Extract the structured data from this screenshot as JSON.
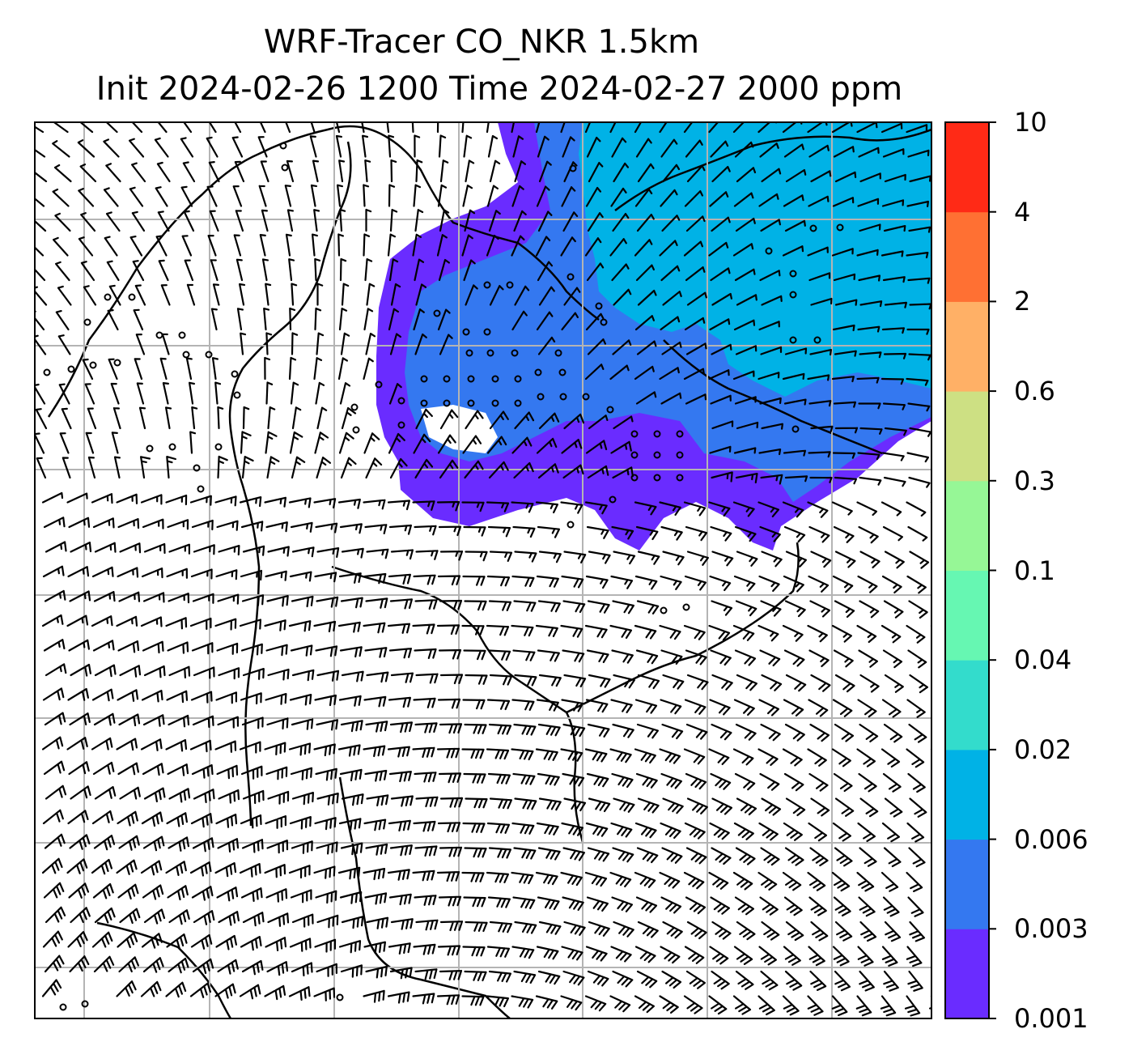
{
  "title": {
    "line1": "WRF-Tracer CO_NKR 1.5km",
    "line2": "Init 2024-02-26 1200 Time 2024-02-27 2000 ppm"
  },
  "colorbar": {
    "levels": [
      "0.001",
      "0.003",
      "0.006",
      "0.02",
      "0.04",
      "0.1",
      "0.3",
      "0.6",
      "2",
      "4",
      "10"
    ],
    "colors": [
      "#6a2cff",
      "#3478f0",
      "#00b2e6",
      "#33dccc",
      "#66f7b2",
      "#96f796",
      "#cde083",
      "#ffb066",
      "#ff7033",
      "#ff2a16"
    ]
  },
  "map": {
    "plume_colors": {
      "outer": "#6a2cff",
      "middle": "#3478f0",
      "inner": "#00b2e6"
    },
    "gridline_color": "#b4b4b4",
    "wind_barb_color": "#000000"
  }
}
